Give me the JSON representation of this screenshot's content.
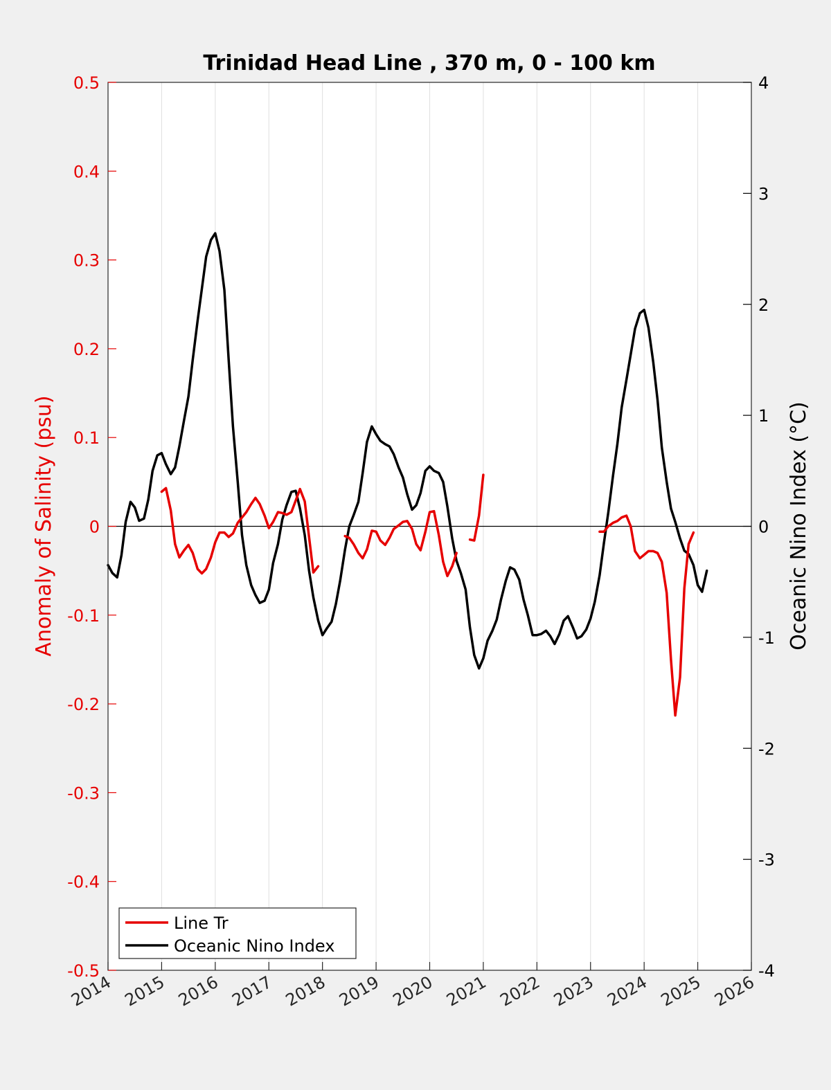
{
  "chart_data": {
    "type": "line",
    "title": "Trinidad Head Line , 370 m, 0 - 100 km",
    "xlabel": "",
    "ylabel_left": "Anomaly of Salinity (psu)",
    "ylabel_right": "Oceanic Nino Index (°C)",
    "xlim": [
      2014,
      2026
    ],
    "ylim_left": [
      -0.5,
      0.5
    ],
    "ylim_right": [
      -4,
      4
    ],
    "x_ticks": [
      "2014",
      "2015",
      "2016",
      "2017",
      "2018",
      "2019",
      "2020",
      "2021",
      "2022",
      "2023",
      "2024",
      "2025",
      "2026"
    ],
    "y_ticks_left": [
      "-0.5",
      "-0.4",
      "-0.3",
      "-0.2",
      "-0.1",
      "0",
      "0.1",
      "0.2",
      "0.3",
      "0.4",
      "0.5"
    ],
    "y_ticks_right": [
      "-4",
      "-3",
      "-2",
      "-1",
      "0",
      "1",
      "2",
      "3",
      "4"
    ],
    "grid": "vertical",
    "legend_position": "bottom-left",
    "colors": {
      "salinity": "#e60000",
      "oni": "#000000",
      "axis_left": "#e60000",
      "axis_right": "#000000"
    },
    "series": [
      {
        "name": "Line Tr",
        "axis": "left",
        "color": "#e60000",
        "segments": [
          [
            [
              2015.0,
              0.039
            ],
            [
              2015.08,
              0.043
            ],
            [
              2015.17,
              0.018
            ],
            [
              2015.25,
              -0.02
            ],
            [
              2015.33,
              -0.035
            ],
            [
              2015.42,
              -0.027
            ],
            [
              2015.5,
              -0.021
            ],
            [
              2015.58,
              -0.03
            ],
            [
              2015.67,
              -0.048
            ],
            [
              2015.75,
              -0.053
            ],
            [
              2015.83,
              -0.048
            ],
            [
              2015.92,
              -0.035
            ],
            [
              2016.0,
              -0.018
            ],
            [
              2016.08,
              -0.007
            ],
            [
              2016.17,
              -0.007
            ],
            [
              2016.25,
              -0.012
            ],
            [
              2016.33,
              -0.008
            ],
            [
              2016.42,
              0.004
            ],
            [
              2016.5,
              0.01
            ],
            [
              2016.58,
              0.016
            ],
            [
              2016.67,
              0.025
            ],
            [
              2016.75,
              0.032
            ],
            [
              2016.83,
              0.025
            ],
            [
              2016.92,
              0.012
            ],
            [
              2017.0,
              -0.002
            ],
            [
              2017.08,
              0.005
            ],
            [
              2017.17,
              0.016
            ],
            [
              2017.25,
              0.015
            ],
            [
              2017.33,
              0.013
            ],
            [
              2017.42,
              0.016
            ],
            [
              2017.5,
              0.029
            ],
            [
              2017.58,
              0.042
            ],
            [
              2017.67,
              0.028
            ],
            [
              2017.75,
              -0.012
            ],
            [
              2017.83,
              -0.052
            ],
            [
              2017.92,
              -0.045
            ]
          ],
          [
            [
              2018.42,
              -0.011
            ],
            [
              2018.5,
              -0.013
            ],
            [
              2018.58,
              -0.02
            ],
            [
              2018.67,
              -0.03
            ],
            [
              2018.75,
              -0.036
            ],
            [
              2018.83,
              -0.026
            ],
            [
              2018.92,
              -0.005
            ],
            [
              2019.0,
              -0.006
            ],
            [
              2019.08,
              -0.016
            ],
            [
              2019.17,
              -0.021
            ],
            [
              2019.25,
              -0.013
            ],
            [
              2019.33,
              -0.003
            ],
            [
              2019.42,
              0.001
            ],
            [
              2019.5,
              0.005
            ],
            [
              2019.58,
              0.006
            ],
            [
              2019.67,
              -0.003
            ],
            [
              2019.75,
              -0.02
            ],
            [
              2019.83,
              -0.027
            ],
            [
              2019.92,
              -0.006
            ],
            [
              2020.0,
              0.016
            ],
            [
              2020.08,
              0.017
            ],
            [
              2020.17,
              -0.01
            ],
            [
              2020.25,
              -0.04
            ],
            [
              2020.33,
              -0.056
            ],
            [
              2020.42,
              -0.045
            ],
            [
              2020.5,
              -0.03
            ]
          ],
          [
            [
              2020.75,
              -0.015
            ],
            [
              2020.83,
              -0.016
            ],
            [
              2020.92,
              0.012
            ],
            [
              2021.0,
              0.058
            ]
          ],
          [
            [
              2023.17,
              -0.006
            ],
            [
              2023.25,
              -0.006
            ],
            [
              2023.33,
              0.0
            ],
            [
              2023.42,
              0.004
            ],
            [
              2023.5,
              0.006
            ],
            [
              2023.58,
              0.01
            ],
            [
              2023.67,
              0.012
            ],
            [
              2023.75,
              0.0
            ],
            [
              2023.83,
              -0.028
            ],
            [
              2023.92,
              -0.036
            ],
            [
              2024.0,
              -0.032
            ],
            [
              2024.08,
              -0.028
            ],
            [
              2024.17,
              -0.028
            ],
            [
              2024.25,
              -0.03
            ],
            [
              2024.33,
              -0.04
            ],
            [
              2024.42,
              -0.075
            ],
            [
              2024.5,
              -0.15
            ],
            [
              2024.58,
              -0.213
            ],
            [
              2024.67,
              -0.17
            ],
            [
              2024.75,
              -0.07
            ],
            [
              2024.83,
              -0.02
            ],
            [
              2024.92,
              -0.007
            ]
          ]
        ]
      },
      {
        "name": "Oceanic Nino Index",
        "axis": "right",
        "color": "#000000",
        "segments": [
          [
            [
              2014.0,
              -0.35
            ],
            [
              2014.08,
              -0.42
            ],
            [
              2014.17,
              -0.46
            ],
            [
              2014.25,
              -0.26
            ],
            [
              2014.33,
              0.04
            ],
            [
              2014.42,
              0.22
            ],
            [
              2014.5,
              0.17
            ],
            [
              2014.58,
              0.05
            ],
            [
              2014.67,
              0.07
            ],
            [
              2014.75,
              0.24
            ],
            [
              2014.83,
              0.5
            ],
            [
              2014.92,
              0.64
            ],
            [
              2015.0,
              0.66
            ],
            [
              2015.08,
              0.56
            ],
            [
              2015.17,
              0.47
            ],
            [
              2015.25,
              0.53
            ],
            [
              2015.33,
              0.72
            ],
            [
              2015.42,
              0.96
            ],
            [
              2015.5,
              1.17
            ],
            [
              2015.58,
              1.5
            ],
            [
              2015.67,
              1.85
            ],
            [
              2015.75,
              2.14
            ],
            [
              2015.83,
              2.43
            ],
            [
              2015.92,
              2.58
            ],
            [
              2016.0,
              2.64
            ],
            [
              2016.08,
              2.48
            ],
            [
              2016.17,
              2.13
            ],
            [
              2016.25,
              1.5
            ],
            [
              2016.33,
              0.9
            ],
            [
              2016.42,
              0.4
            ],
            [
              2016.5,
              -0.08
            ],
            [
              2016.58,
              -0.35
            ],
            [
              2016.67,
              -0.53
            ],
            [
              2016.75,
              -0.62
            ],
            [
              2016.83,
              -0.69
            ],
            [
              2016.92,
              -0.67
            ],
            [
              2017.0,
              -0.57
            ],
            [
              2017.08,
              -0.33
            ],
            [
              2017.17,
              -0.16
            ],
            [
              2017.25,
              0.06
            ],
            [
              2017.33,
              0.19
            ],
            [
              2017.42,
              0.31
            ],
            [
              2017.5,
              0.32
            ],
            [
              2017.58,
              0.16
            ],
            [
              2017.67,
              -0.08
            ],
            [
              2017.75,
              -0.4
            ],
            [
              2017.83,
              -0.64
            ],
            [
              2017.92,
              -0.85
            ],
            [
              2018.0,
              -0.98
            ],
            [
              2018.08,
              -0.92
            ],
            [
              2018.17,
              -0.86
            ],
            [
              2018.25,
              -0.7
            ],
            [
              2018.33,
              -0.49
            ],
            [
              2018.42,
              -0.21
            ],
            [
              2018.5,
              0.0
            ],
            [
              2018.58,
              0.1
            ],
            [
              2018.67,
              0.22
            ],
            [
              2018.75,
              0.48
            ],
            [
              2018.83,
              0.76
            ],
            [
              2018.92,
              0.9
            ],
            [
              2019.0,
              0.83
            ],
            [
              2019.08,
              0.77
            ],
            [
              2019.17,
              0.74
            ],
            [
              2019.25,
              0.72
            ],
            [
              2019.33,
              0.65
            ],
            [
              2019.42,
              0.53
            ],
            [
              2019.5,
              0.44
            ],
            [
              2019.58,
              0.29
            ],
            [
              2019.67,
              0.15
            ],
            [
              2019.75,
              0.19
            ],
            [
              2019.83,
              0.3
            ],
            [
              2019.92,
              0.5
            ],
            [
              2020.0,
              0.54
            ],
            [
              2020.08,
              0.5
            ],
            [
              2020.17,
              0.48
            ],
            [
              2020.25,
              0.4
            ],
            [
              2020.33,
              0.18
            ],
            [
              2020.42,
              -0.11
            ],
            [
              2020.5,
              -0.31
            ],
            [
              2020.58,
              -0.42
            ],
            [
              2020.67,
              -0.57
            ],
            [
              2020.75,
              -0.91
            ],
            [
              2020.83,
              -1.16
            ],
            [
              2020.92,
              -1.28
            ],
            [
              2021.0,
              -1.19
            ],
            [
              2021.08,
              -1.03
            ],
            [
              2021.17,
              -0.94
            ],
            [
              2021.25,
              -0.84
            ],
            [
              2021.33,
              -0.66
            ],
            [
              2021.42,
              -0.49
            ],
            [
              2021.5,
              -0.37
            ],
            [
              2021.58,
              -0.39
            ],
            [
              2021.67,
              -0.48
            ],
            [
              2021.75,
              -0.66
            ],
            [
              2021.83,
              -0.8
            ],
            [
              2021.92,
              -0.98
            ],
            [
              2022.0,
              -0.98
            ],
            [
              2022.08,
              -0.97
            ],
            [
              2022.17,
              -0.94
            ],
            [
              2022.25,
              -0.99
            ],
            [
              2022.33,
              -1.06
            ],
            [
              2022.42,
              -0.97
            ],
            [
              2022.5,
              -0.85
            ],
            [
              2022.58,
              -0.81
            ],
            [
              2022.67,
              -0.91
            ],
            [
              2022.75,
              -1.01
            ],
            [
              2022.83,
              -0.99
            ],
            [
              2022.92,
              -0.93
            ],
            [
              2023.0,
              -0.83
            ],
            [
              2023.08,
              -0.68
            ],
            [
              2023.17,
              -0.44
            ],
            [
              2023.25,
              -0.15
            ],
            [
              2023.33,
              0.12
            ],
            [
              2023.42,
              0.46
            ],
            [
              2023.5,
              0.74
            ],
            [
              2023.58,
              1.07
            ],
            [
              2023.67,
              1.32
            ],
            [
              2023.75,
              1.55
            ],
            [
              2023.83,
              1.78
            ],
            [
              2023.92,
              1.92
            ],
            [
              2024.0,
              1.95
            ],
            [
              2024.08,
              1.79
            ],
            [
              2024.17,
              1.48
            ],
            [
              2024.25,
              1.14
            ],
            [
              2024.33,
              0.71
            ],
            [
              2024.42,
              0.4
            ],
            [
              2024.5,
              0.16
            ],
            [
              2024.58,
              0.04
            ],
            [
              2024.67,
              -0.11
            ],
            [
              2024.75,
              -0.22
            ],
            [
              2024.83,
              -0.25
            ],
            [
              2024.92,
              -0.35
            ],
            [
              2025.0,
              -0.53
            ],
            [
              2025.08,
              -0.59
            ],
            [
              2025.17,
              -0.4
            ]
          ]
        ]
      }
    ]
  }
}
